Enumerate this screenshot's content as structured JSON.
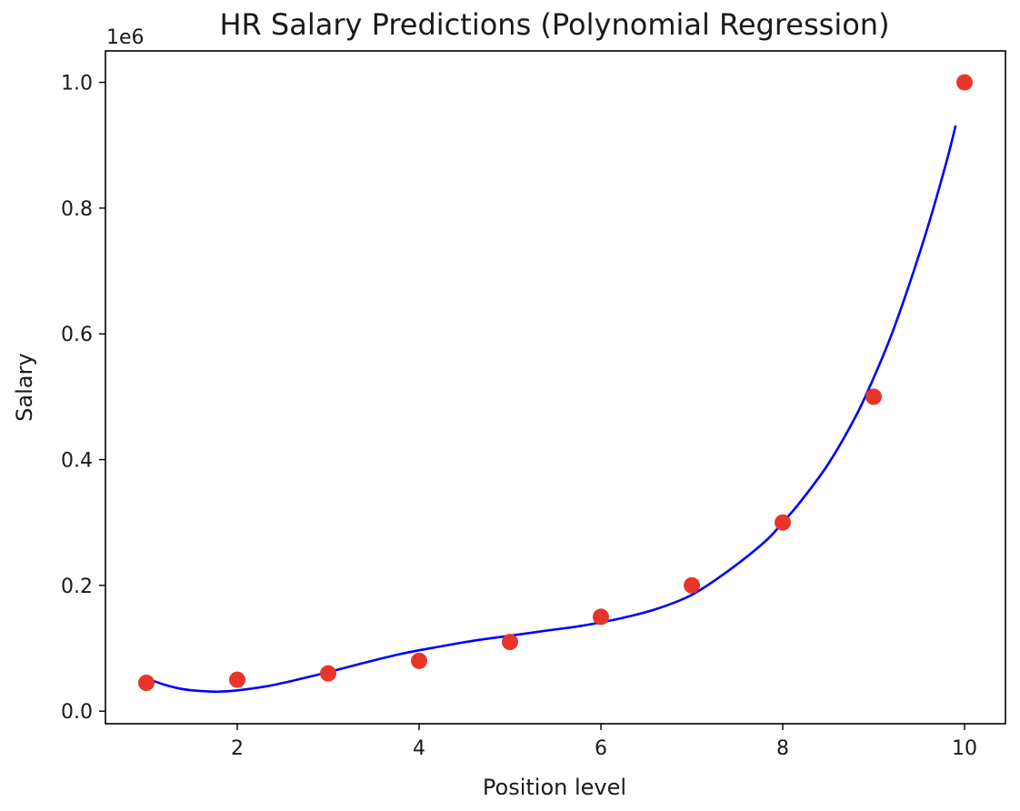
{
  "chart_data": {
    "type": "scatter",
    "title": "HR Salary Predictions (Polynomial Regression)",
    "xlabel": "Position level",
    "ylabel": "Salary",
    "y_offset_label": "1e6",
    "xlim": [
      0.55,
      10.45
    ],
    "ylim": [
      -0.02,
      1.05
    ],
    "x_ticks": [
      2,
      4,
      6,
      8,
      10
    ],
    "x_tick_labels": [
      "2",
      "4",
      "6",
      "8",
      "10"
    ],
    "y_ticks": [
      0.0,
      0.2,
      0.4,
      0.6,
      0.8,
      1.0
    ],
    "y_tick_labels": [
      "0.0",
      "0.2",
      "0.4",
      "0.6",
      "0.8",
      "1.0"
    ],
    "grid": false,
    "series": [
      {
        "kind": "scatter",
        "color": "#e8352a",
        "x": [
          1,
          2,
          3,
          4,
          5,
          6,
          7,
          8,
          9,
          10
        ],
        "y": [
          0.045,
          0.05,
          0.06,
          0.08,
          0.11,
          0.15,
          0.2,
          0.3,
          0.5,
          1.0
        ]
      },
      {
        "kind": "line",
        "color": "#0000ff",
        "x": [
          1.0,
          1.2,
          1.4,
          1.6,
          1.8,
          2.0,
          2.3,
          2.6,
          3.0,
          3.4,
          3.8,
          4.2,
          4.6,
          5.0,
          5.4,
          5.8,
          6.2,
          6.6,
          7.0,
          7.4,
          7.8,
          8.0,
          8.2,
          8.5,
          8.8,
          9.0,
          9.2,
          9.4,
          9.6,
          9.8,
          9.9
        ],
        "y": [
          0.052,
          0.042,
          0.035,
          0.032,
          0.031,
          0.033,
          0.039,
          0.048,
          0.062,
          0.077,
          0.091,
          0.102,
          0.112,
          0.12,
          0.128,
          0.136,
          0.147,
          0.162,
          0.185,
          0.223,
          0.269,
          0.3,
          0.334,
          0.393,
          0.468,
          0.53,
          0.6,
          0.682,
          0.772,
          0.873,
          0.93
        ]
      }
    ]
  }
}
